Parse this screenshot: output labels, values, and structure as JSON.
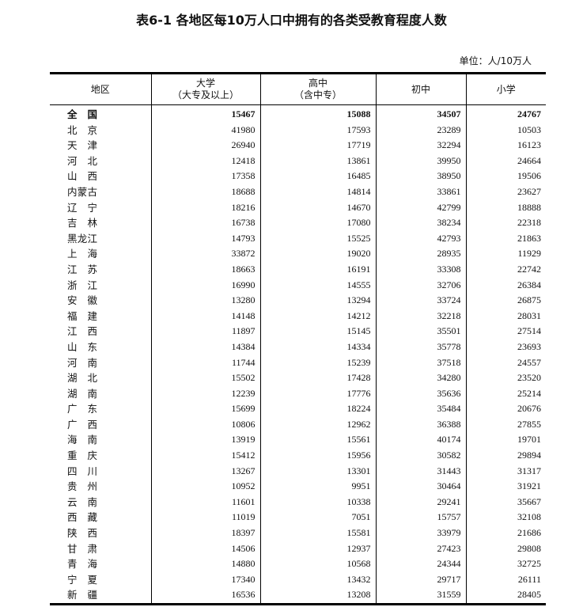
{
  "title": "表6-1 各地区每10万人口中拥有的各类受教育程度人数",
  "unit": "单位：人/10万人",
  "columns": [
    {
      "line1": "地区",
      "line2": ""
    },
    {
      "line1": "大学",
      "line2": "（大专及以上）"
    },
    {
      "line1": "高中",
      "line2": "（含中专）"
    },
    {
      "line1": "初中",
      "line2": ""
    },
    {
      "line1": "小学",
      "line2": ""
    }
  ],
  "rows": [
    [
      "全国",
      "15467",
      "15088",
      "34507",
      "24767"
    ],
    [
      "北京",
      "41980",
      "17593",
      "23289",
      "10503"
    ],
    [
      "天津",
      "26940",
      "17719",
      "32294",
      "16123"
    ],
    [
      "河北",
      "12418",
      "13861",
      "39950",
      "24664"
    ],
    [
      "山西",
      "17358",
      "16485",
      "38950",
      "19506"
    ],
    [
      "内蒙古",
      "18688",
      "14814",
      "33861",
      "23627"
    ],
    [
      "辽宁",
      "18216",
      "14670",
      "42799",
      "18888"
    ],
    [
      "吉林",
      "16738",
      "17080",
      "38234",
      "22318"
    ],
    [
      "黑龙江",
      "14793",
      "15525",
      "42793",
      "21863"
    ],
    [
      "上海",
      "33872",
      "19020",
      "28935",
      "11929"
    ],
    [
      "江苏",
      "18663",
      "16191",
      "33308",
      "22742"
    ],
    [
      "浙江",
      "16990",
      "14555",
      "32706",
      "26384"
    ],
    [
      "安徽",
      "13280",
      "13294",
      "33724",
      "26875"
    ],
    [
      "福建",
      "14148",
      "14212",
      "32218",
      "28031"
    ],
    [
      "江西",
      "11897",
      "15145",
      "35501",
      "27514"
    ],
    [
      "山东",
      "14384",
      "14334",
      "35778",
      "23693"
    ],
    [
      "河南",
      "11744",
      "15239",
      "37518",
      "24557"
    ],
    [
      "湖北",
      "15502",
      "17428",
      "34280",
      "23520"
    ],
    [
      "湖南",
      "12239",
      "17776",
      "35636",
      "25214"
    ],
    [
      "广东",
      "15699",
      "18224",
      "35484",
      "20676"
    ],
    [
      "广西",
      "10806",
      "12962",
      "36388",
      "27855"
    ],
    [
      "海南",
      "13919",
      "15561",
      "40174",
      "19701"
    ],
    [
      "重庆",
      "15412",
      "15956",
      "30582",
      "29894"
    ],
    [
      "四川",
      "13267",
      "13301",
      "31443",
      "31317"
    ],
    [
      "贵州",
      "10952",
      "9951",
      "30464",
      "31921"
    ],
    [
      "云南",
      "11601",
      "10338",
      "29241",
      "35667"
    ],
    [
      "西藏",
      "11019",
      "7051",
      "15757",
      "32108"
    ],
    [
      "陕西",
      "18397",
      "15581",
      "33979",
      "21686"
    ],
    [
      "甘肃",
      "14506",
      "12937",
      "27423",
      "29808"
    ],
    [
      "青海",
      "14880",
      "10568",
      "24344",
      "32725"
    ],
    [
      "宁夏",
      "17340",
      "13432",
      "29717",
      "26111"
    ],
    [
      "新疆",
      "16536",
      "13208",
      "31559",
      "28405"
    ]
  ]
}
